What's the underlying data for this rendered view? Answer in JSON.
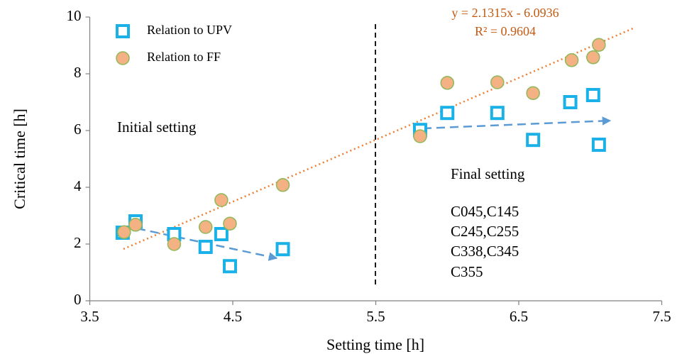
{
  "chart_data": {
    "type": "scatter",
    "x_label": "Setting time [h]",
    "y_label": "Critical time [h]",
    "xlim": [
      3.5,
      7.5
    ],
    "xticks": [
      3.5,
      4.5,
      5.5,
      6.5,
      7.5
    ],
    "ylim": [
      0,
      10
    ],
    "yticks": [
      0,
      2,
      4,
      6,
      8,
      10
    ],
    "series": [
      {
        "name": "Relation to UPV",
        "marker": "square",
        "color": "#1ab0e8",
        "x": [
          3.73,
          3.82,
          4.09,
          4.31,
          4.42,
          4.48,
          4.85,
          5.81,
          6.0,
          6.35,
          6.6,
          6.86,
          7.02,
          7.06
        ],
        "values": [
          2.4,
          2.8,
          2.35,
          1.9,
          2.35,
          1.22,
          1.82,
          6.02,
          6.62,
          6.62,
          5.67,
          7.0,
          7.25,
          5.5
        ]
      },
      {
        "name": "Relation to FF",
        "marker": "circle",
        "color": "#f4b183",
        "x": [
          3.74,
          3.82,
          4.09,
          4.31,
          4.42,
          4.48,
          4.85,
          5.81,
          6.0,
          6.35,
          6.6,
          6.87,
          7.02,
          7.06
        ],
        "values": [
          2.42,
          2.68,
          2.0,
          2.6,
          3.55,
          2.72,
          4.08,
          5.8,
          7.68,
          7.7,
          7.32,
          8.48,
          8.58,
          9.02
        ]
      }
    ],
    "annotations": [
      "y = 2.1315x - 6.0936",
      "R² = 0.9604",
      "Initial setting",
      "Final setting",
      "C045,C145",
      "C245,C255",
      "C338,C345",
      "C355"
    ]
  }
}
